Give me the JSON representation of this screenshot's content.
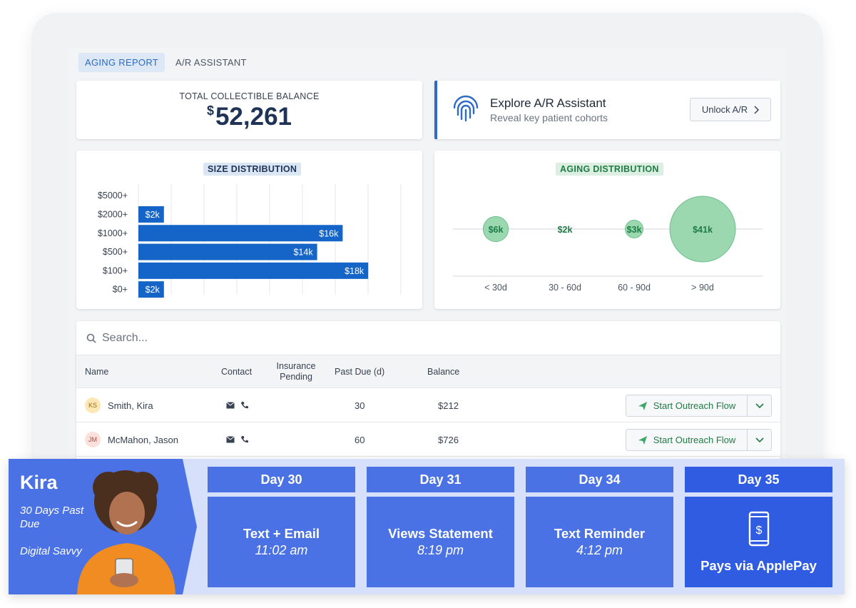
{
  "tabs": [
    {
      "label": "AGING REPORT",
      "active": true
    },
    {
      "label": "A/R ASSISTANT",
      "active": false
    }
  ],
  "balance": {
    "label": "TOTAL COLLECTIBLE BALANCE",
    "currency": "$",
    "value": "52,261"
  },
  "explore": {
    "title": "Explore A/R Assistant",
    "subtitle": "Reveal key patient cohorts",
    "button": "Unlock A/R",
    "icon": "fingerprint-icon"
  },
  "colors": {
    "primary": "#2d6bc4",
    "bar": "#1565c8",
    "green": "#1e7c44",
    "bubble": "#9bd8b0",
    "banner": "#4a72e4"
  },
  "charts": {
    "size_title": "SIZE DISTRIBUTION",
    "aging_title": "AGING DISTRIBUTION"
  },
  "chart_data": [
    {
      "type": "bar",
      "orientation": "horizontal",
      "title": "SIZE DISTRIBUTION",
      "categories": [
        "$5000+",
        "$2000+",
        "$1000+",
        "$500+",
        "$100+",
        "$0+"
      ],
      "values": [
        0,
        2,
        16,
        14,
        18,
        2
      ],
      "labels": [
        "",
        "$2k",
        "$16k",
        "$14k",
        "$18k",
        "$2k"
      ],
      "xlim": [
        0,
        20
      ],
      "grid": true
    },
    {
      "type": "scatter",
      "variant": "bubble",
      "title": "AGING DISTRIBUTION",
      "categories": [
        "< 30d",
        "30 - 60d",
        "60 - 90d",
        "> 90d"
      ],
      "values": [
        6,
        2,
        3,
        41
      ],
      "labels": [
        "$6k",
        "$2k",
        "$3k",
        "$41k"
      ]
    }
  ],
  "search": {
    "placeholder": "Search...",
    "value": ""
  },
  "table": {
    "headers": {
      "name": "Name",
      "contact": "Contact",
      "insurance": "Insurance Pending",
      "pastdue": "Past Due (d)",
      "balance": "Balance"
    },
    "rows": [
      {
        "initials": "KS",
        "name": "Smith, Kira",
        "pastdue": "30",
        "balance": "$212",
        "action": "Start Outreach Flow",
        "avatar_bg": "#fde7b5",
        "avatar_fg": "#9a6a12"
      },
      {
        "initials": "JM",
        "name": "McMahon, Jason",
        "pastdue": "60",
        "balance": "$726",
        "action": "Start Outreach Flow",
        "avatar_bg": "#fbe0dc",
        "avatar_fg": "#b44a3c"
      }
    ]
  },
  "persona": {
    "name": "Kira",
    "line1": "30 Days Past Due",
    "line2": "Digital Savvy"
  },
  "timeline": [
    {
      "day": "Day 30",
      "action": "Text + Email",
      "time": "11:02 am"
    },
    {
      "day": "Day 31",
      "action": "Views Statement",
      "time": "8:19 pm"
    },
    {
      "day": "Day 34",
      "action": "Text Reminder",
      "time": "4:12 pm"
    },
    {
      "day": "Day 35",
      "action": "Pays via ApplePay",
      "time": "",
      "icon": "phone-dollar-icon"
    }
  ]
}
